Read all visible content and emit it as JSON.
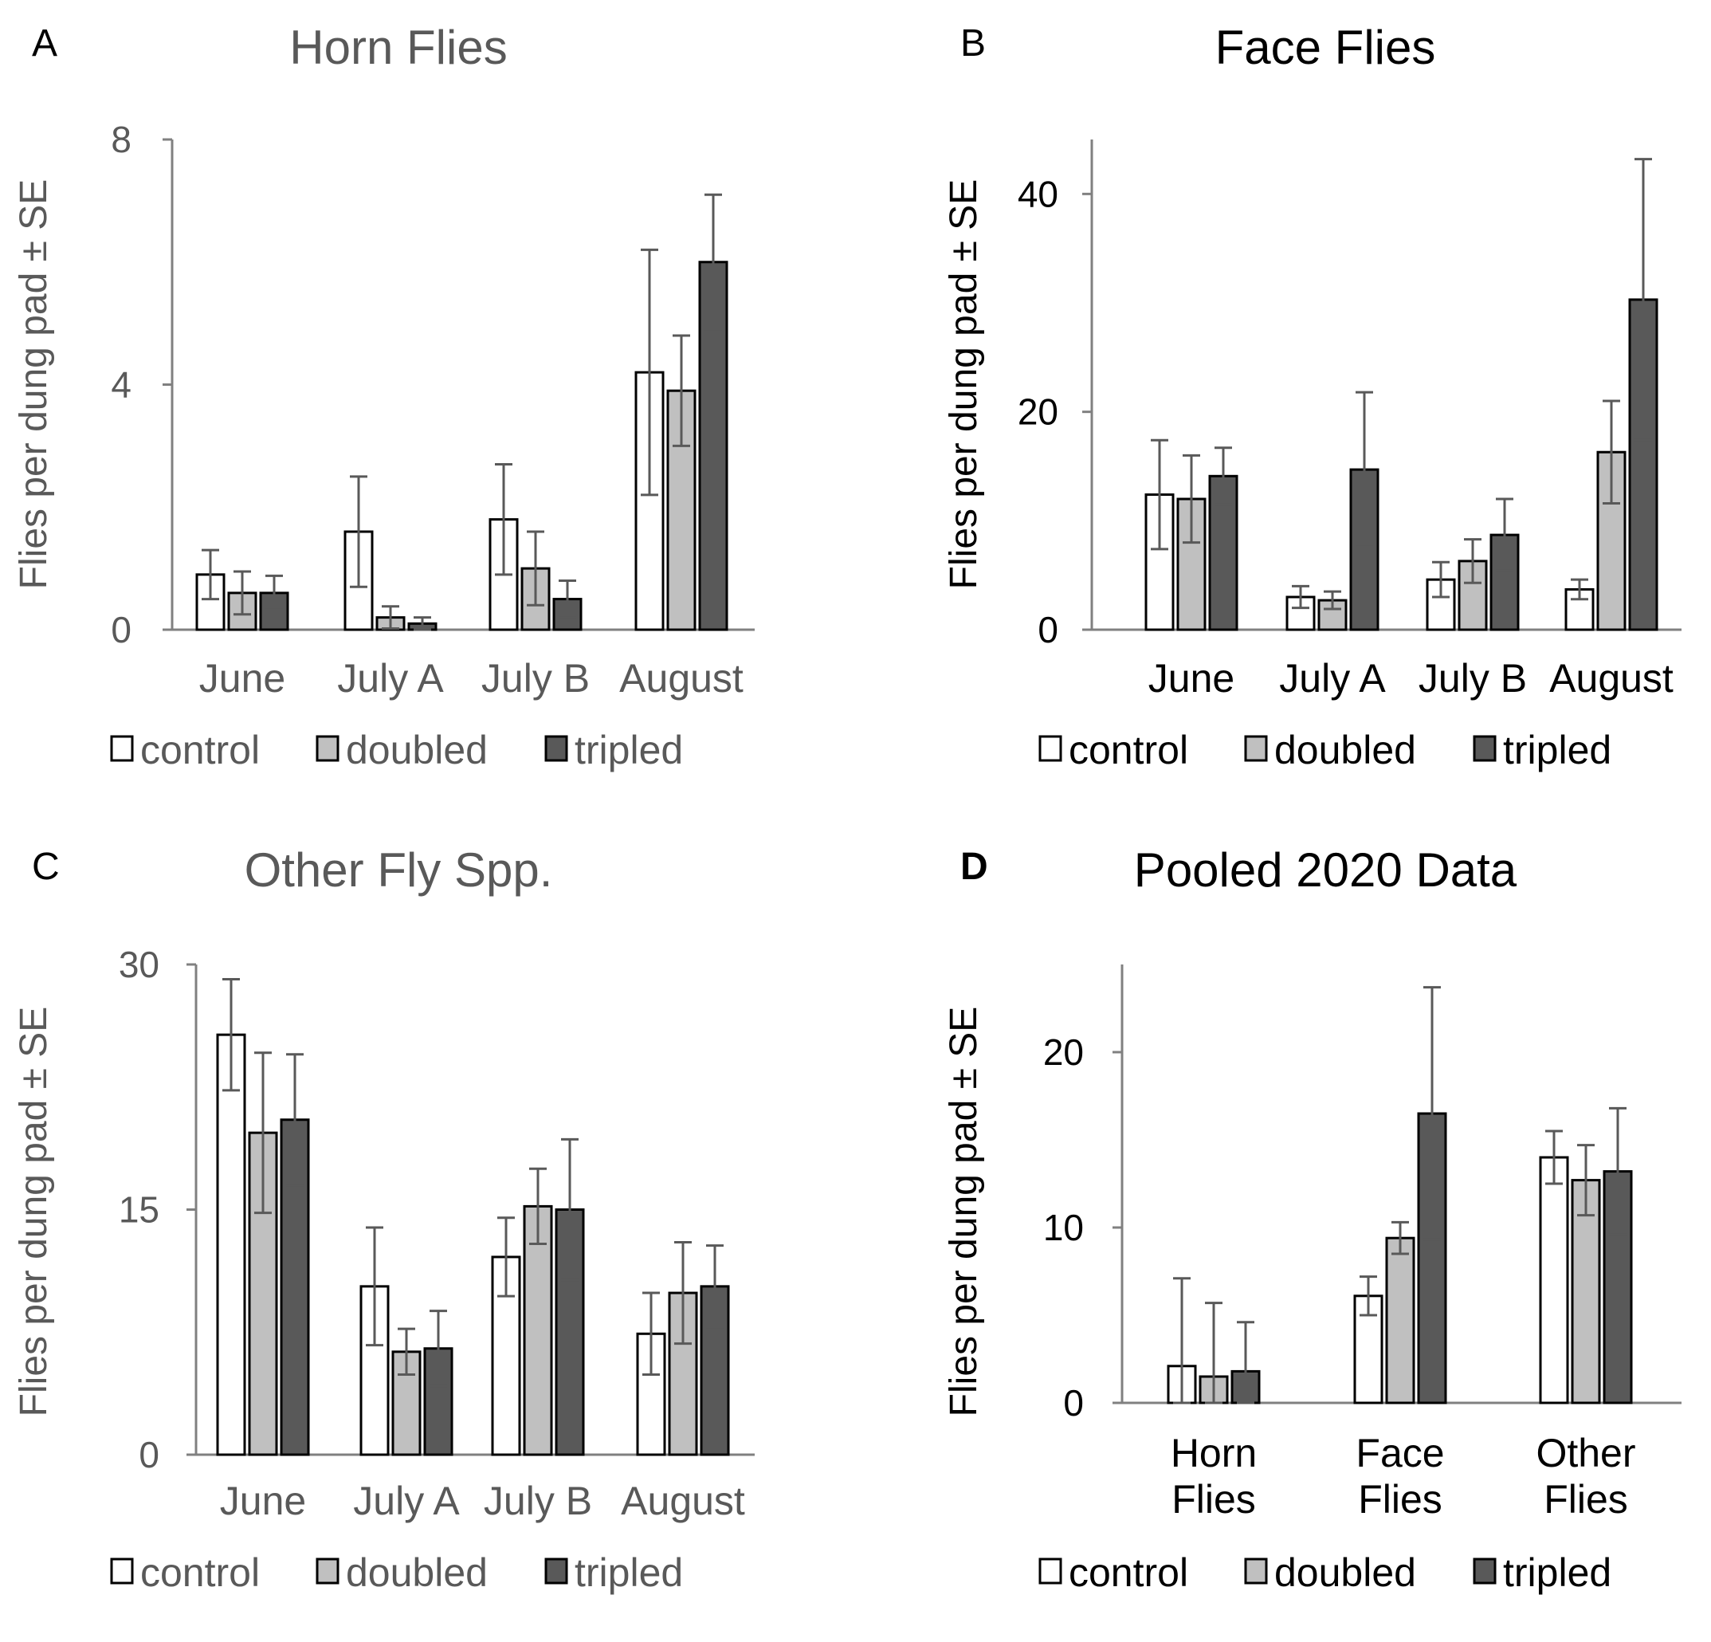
{
  "ylabel_common": "Flies per dung pad ± SE",
  "legend_labels": [
    "control",
    "doubled",
    "tripled"
  ],
  "colors": {
    "control": "#ffffff",
    "doubled": "#c0c0c0",
    "tripled": "#595959",
    "axis_gray": "#808080",
    "text_gray": "#595959",
    "text_black": "#000000",
    "errorbar": "#595959"
  },
  "chart_data": [
    {
      "panel": "A",
      "type": "bar",
      "title": "Horn Flies",
      "ylabel": "Flies per dung pad ± SE",
      "ylim": [
        0,
        8
      ],
      "yticks": [
        0,
        4,
        8
      ],
      "categories": [
        "June",
        "July  A",
        "July  B",
        "August"
      ],
      "series": [
        {
          "name": "control",
          "values": [
            0.9,
            1.6,
            1.8,
            4.2
          ],
          "errors": [
            0.4,
            0.9,
            0.9,
            2.0
          ]
        },
        {
          "name": "doubled",
          "values": [
            0.6,
            0.2,
            1.0,
            3.9
          ],
          "errors": [
            0.35,
            0.18,
            0.6,
            0.9
          ]
        },
        {
          "name": "tripled",
          "values": [
            0.6,
            0.1,
            0.5,
            6.0
          ],
          "errors": [
            0.28,
            0.1,
            0.3,
            1.1
          ]
        }
      ],
      "grid": false,
      "legend": "bottom"
    },
    {
      "panel": "B",
      "type": "bar",
      "title": "Face Flies",
      "ylabel": "Flies per dung pad ± SE",
      "ylim": [
        0,
        45
      ],
      "yticks": [
        0,
        20,
        40
      ],
      "categories": [
        "June",
        "July  A",
        "July  B",
        "August"
      ],
      "series": [
        {
          "name": "control",
          "values": [
            12.4,
            3.0,
            4.6,
            3.7
          ],
          "errors": [
            5.0,
            1.0,
            1.6,
            0.9
          ]
        },
        {
          "name": "doubled",
          "values": [
            12.0,
            2.7,
            6.3,
            16.3
          ],
          "errors": [
            4.0,
            0.8,
            2.0,
            4.7
          ]
        },
        {
          "name": "tripled",
          "values": [
            14.1,
            14.7,
            8.7,
            30.3
          ],
          "errors": [
            2.6,
            7.1,
            3.3,
            12.9
          ]
        }
      ],
      "grid": false,
      "legend": "bottom"
    },
    {
      "panel": "C",
      "type": "bar",
      "title": "Other Fly Spp.",
      "ylabel": "Flies per dung pad ± SE",
      "ylim": [
        0,
        30
      ],
      "yticks": [
        0,
        15,
        30
      ],
      "categories": [
        "June",
        "July  A",
        "July  B",
        "August"
      ],
      "series": [
        {
          "name": "control",
          "values": [
            25.7,
            10.3,
            12.1,
            7.4
          ],
          "errors": [
            3.4,
            3.6,
            2.4,
            2.5
          ]
        },
        {
          "name": "doubled",
          "values": [
            19.7,
            6.3,
            15.2,
            9.9
          ],
          "errors": [
            4.9,
            1.4,
            2.3,
            3.1
          ]
        },
        {
          "name": "tripled",
          "values": [
            20.5,
            6.5,
            15.0,
            10.3
          ],
          "errors": [
            4.0,
            2.3,
            4.3,
            2.5
          ]
        }
      ],
      "grid": false,
      "legend": "bottom"
    },
    {
      "panel": "D",
      "type": "bar",
      "title": "Pooled 2020 Data",
      "ylabel": "Flies per dung pad ± SE",
      "ylim": [
        0,
        25
      ],
      "yticks": [
        0,
        10,
        20
      ],
      "categories": [
        "Horn\nFlies",
        "Face\nFlies",
        "Other\nFlies"
      ],
      "series": [
        {
          "name": "control",
          "values": [
            2.1,
            6.1,
            14.0
          ],
          "errors": [
            5.0,
            1.1,
            1.5
          ]
        },
        {
          "name": "doubled",
          "values": [
            1.5,
            9.4,
            12.7
          ],
          "errors": [
            4.2,
            0.9,
            2.0
          ]
        },
        {
          "name": "tripled",
          "values": [
            1.8,
            16.5,
            13.2
          ],
          "errors": [
            2.8,
            7.2,
            3.6
          ]
        }
      ],
      "grid": false,
      "legend": "bottom"
    }
  ]
}
